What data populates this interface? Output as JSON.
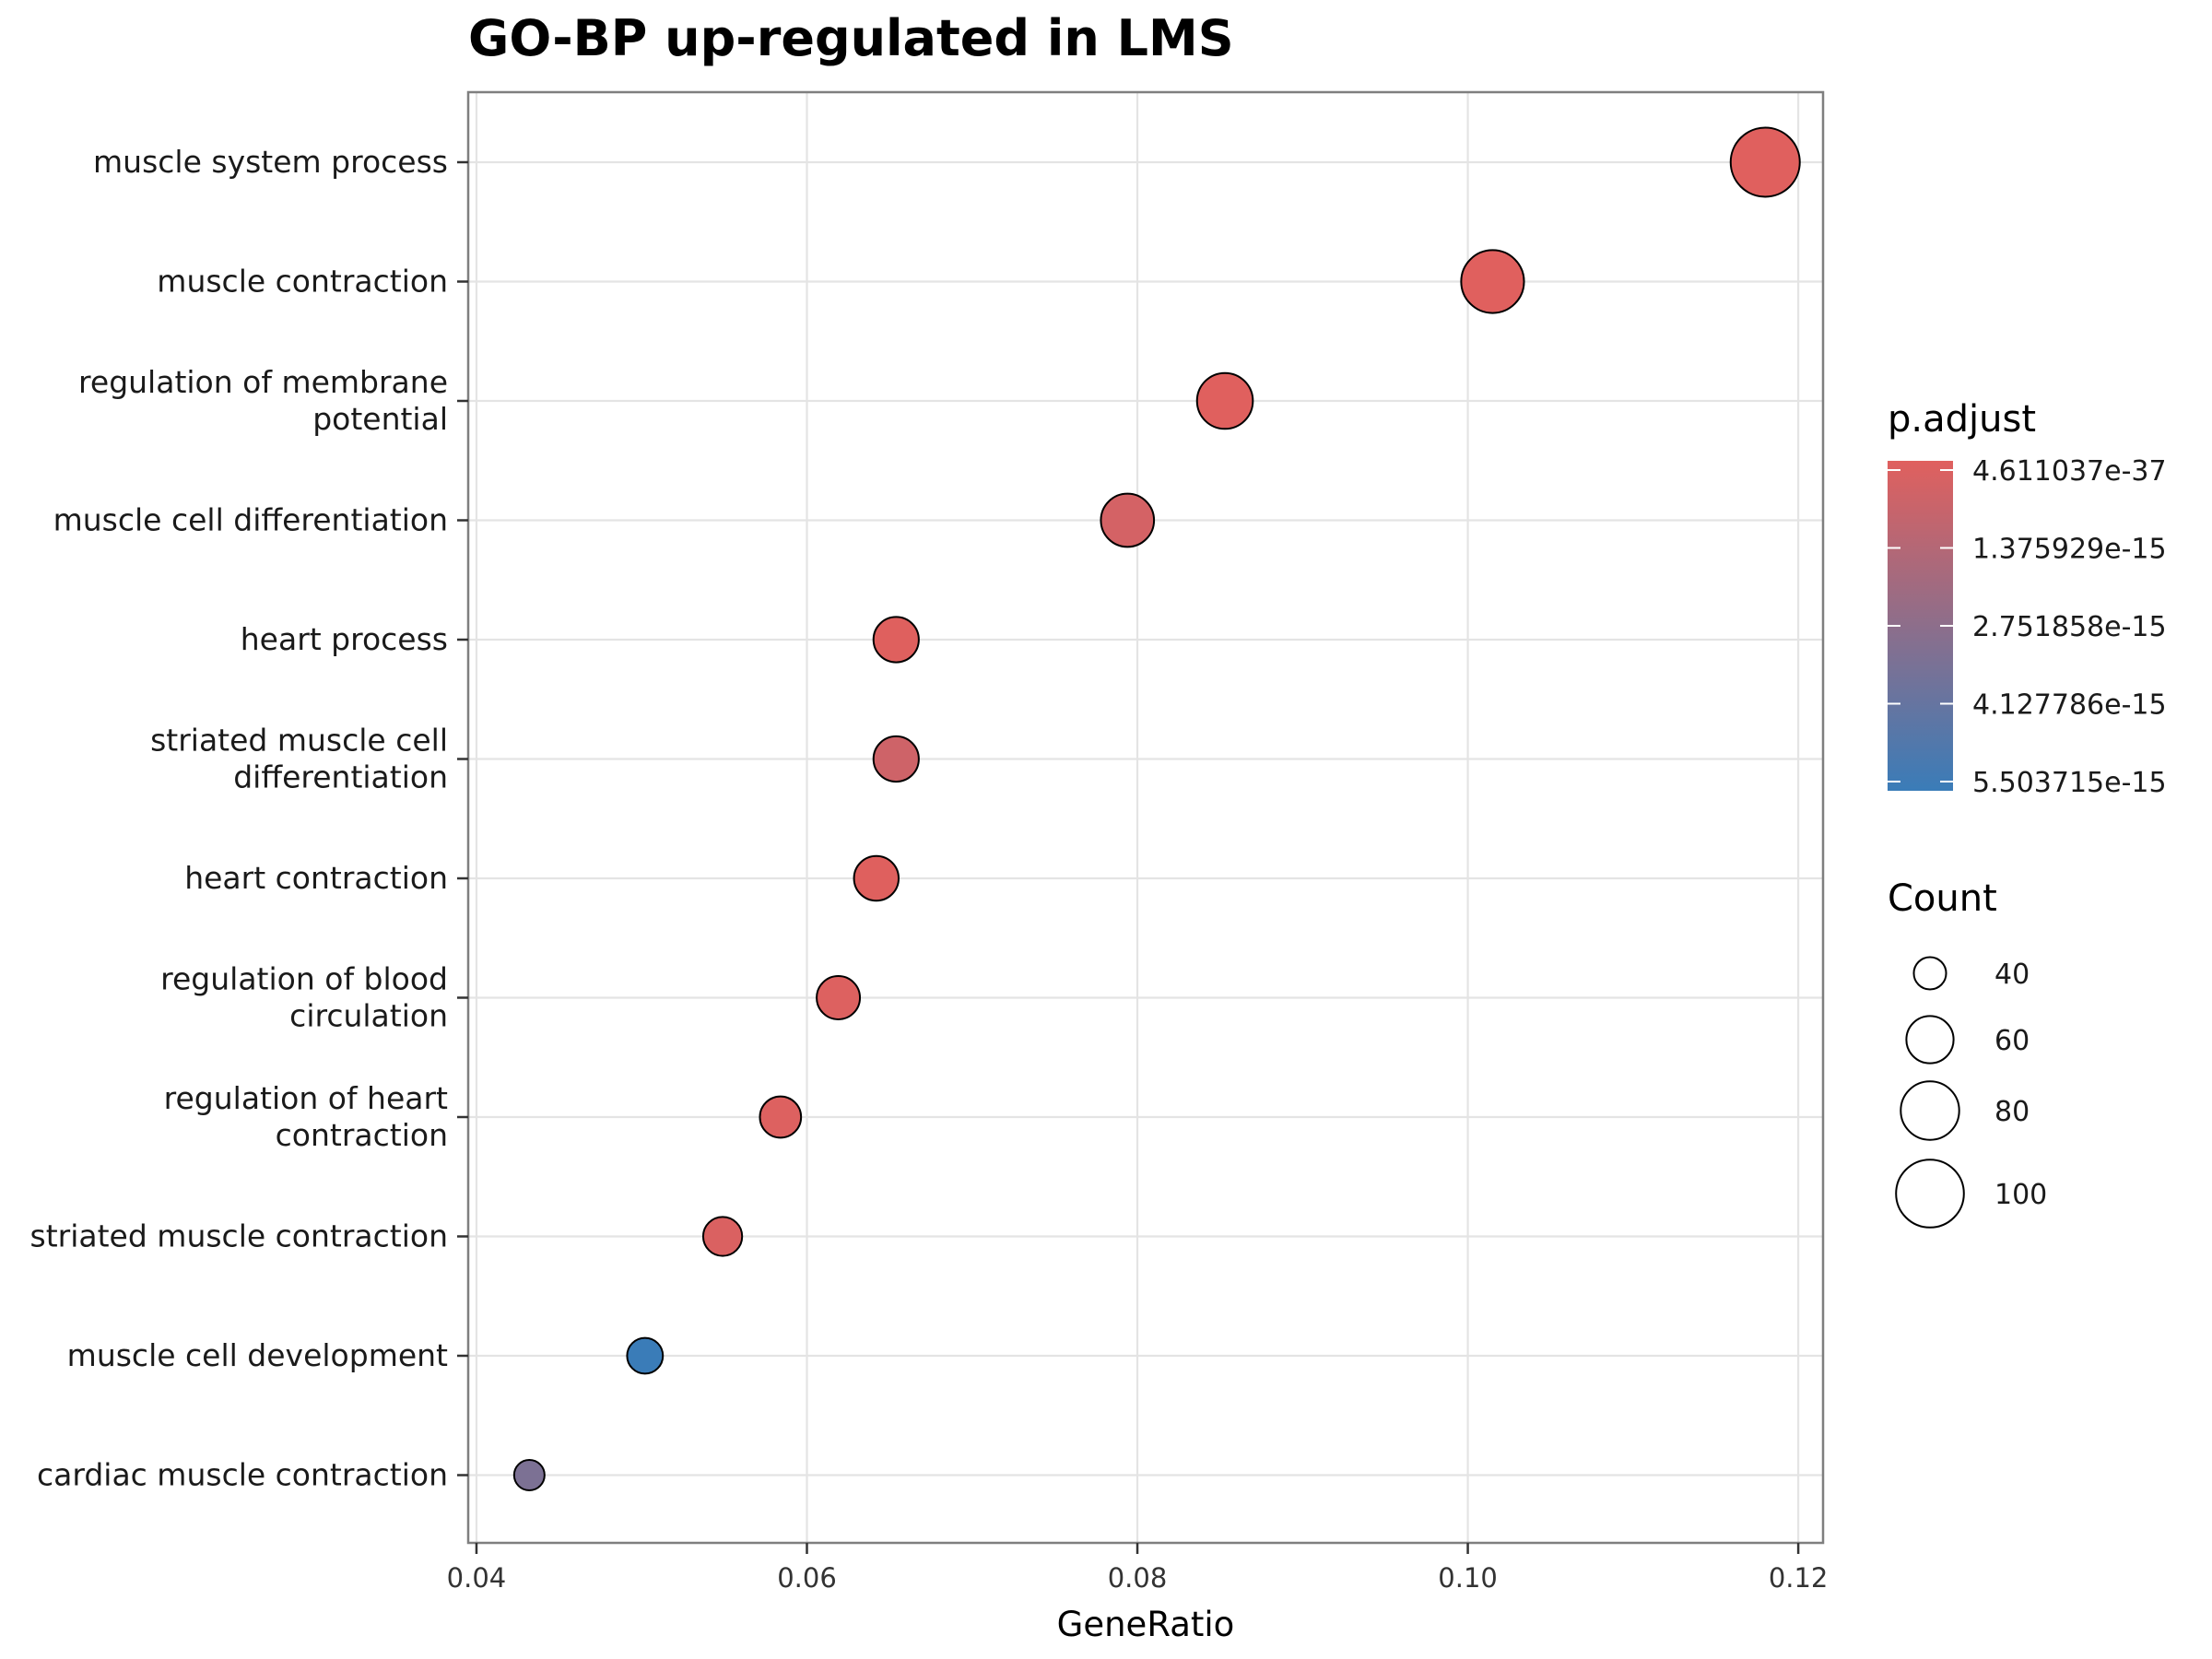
{
  "chart_data": {
    "type": "scatter",
    "title": "GO-BP up-regulated in LMS",
    "xlabel": "GeneRatio",
    "ylabel": "",
    "xlim": [
      0.0395,
      0.1215
    ],
    "xticks": [
      0.04,
      0.06,
      0.08,
      0.1,
      0.12
    ],
    "xtick_labels": [
      "0.04",
      "0.06",
      "0.08",
      "0.10",
      "0.12"
    ],
    "grid": true,
    "legend_position": "right",
    "points": [
      {
        "term": "muscle system process",
        "label_lines": [
          "muscle system process"
        ],
        "gene_ratio": 0.118,
        "count": 103,
        "p_adjust": 4.6e-37
      },
      {
        "term": "muscle contraction",
        "label_lines": [
          "muscle contraction"
        ],
        "gene_ratio": 0.1015,
        "count": 89,
        "p_adjust": 1e-30
      },
      {
        "term": "regulation of membrane potential",
        "label_lines": [
          "regulation of membrane",
          "potential"
        ],
        "gene_ratio": 0.0853,
        "count": 75,
        "p_adjust": 1e-17
      },
      {
        "term": "muscle cell differentiation",
        "label_lines": [
          "muscle cell differentiation"
        ],
        "gene_ratio": 0.0794,
        "count": 70,
        "p_adjust": 4e-16
      },
      {
        "term": "heart process",
        "label_lines": [
          "heart process"
        ],
        "gene_ratio": 0.0654,
        "count": 57,
        "p_adjust": 2e-17
      },
      {
        "term": "striated muscle cell differentiation",
        "label_lines": [
          "striated muscle cell",
          "differentiation"
        ],
        "gene_ratio": 0.0654,
        "count": 57,
        "p_adjust": 6e-16
      },
      {
        "term": "heart contraction",
        "label_lines": [
          "heart contraction"
        ],
        "gene_ratio": 0.0642,
        "count": 56,
        "p_adjust": 2e-17
      },
      {
        "term": "regulation of blood circulation",
        "label_lines": [
          "regulation of blood",
          "circulation"
        ],
        "gene_ratio": 0.0619,
        "count": 54,
        "p_adjust": 1e-16
      },
      {
        "term": "regulation of heart contraction",
        "label_lines": [
          "regulation of heart",
          "contraction"
        ],
        "gene_ratio": 0.0584,
        "count": 51,
        "p_adjust": 1e-16
      },
      {
        "term": "striated muscle contraction",
        "label_lines": [
          "striated muscle contraction"
        ],
        "gene_ratio": 0.0549,
        "count": 48,
        "p_adjust": 2e-16
      },
      {
        "term": "muscle cell development",
        "label_lines": [
          "muscle cell development"
        ],
        "gene_ratio": 0.0502,
        "count": 44,
        "p_adjust": 5.5e-15
      },
      {
        "term": "cardiac muscle contraction",
        "label_lines": [
          "cardiac muscle contraction"
        ],
        "gene_ratio": 0.0432,
        "count": 38,
        "p_adjust": 3.3e-15
      }
    ],
    "color_legend": {
      "title": "p.adjust",
      "min": 4.611037e-37,
      "max": 5.503715e-15,
      "low_color": "#E0605E",
      "high_color": "#3A7CB8",
      "breaks": [
        4.611037e-37,
        1.375929e-15,
        2.751858e-15,
        4.127786e-15,
        5.503715e-15
      ],
      "labels": [
        "4.611037e-37",
        "1.375929e-15",
        "2.751858e-15",
        "4.127786e-15",
        "5.503715e-15"
      ]
    },
    "size_legend": {
      "title": "Count",
      "values": [
        40,
        60,
        80,
        100
      ],
      "labels": [
        "40",
        "60",
        "80",
        "100"
      ]
    }
  }
}
